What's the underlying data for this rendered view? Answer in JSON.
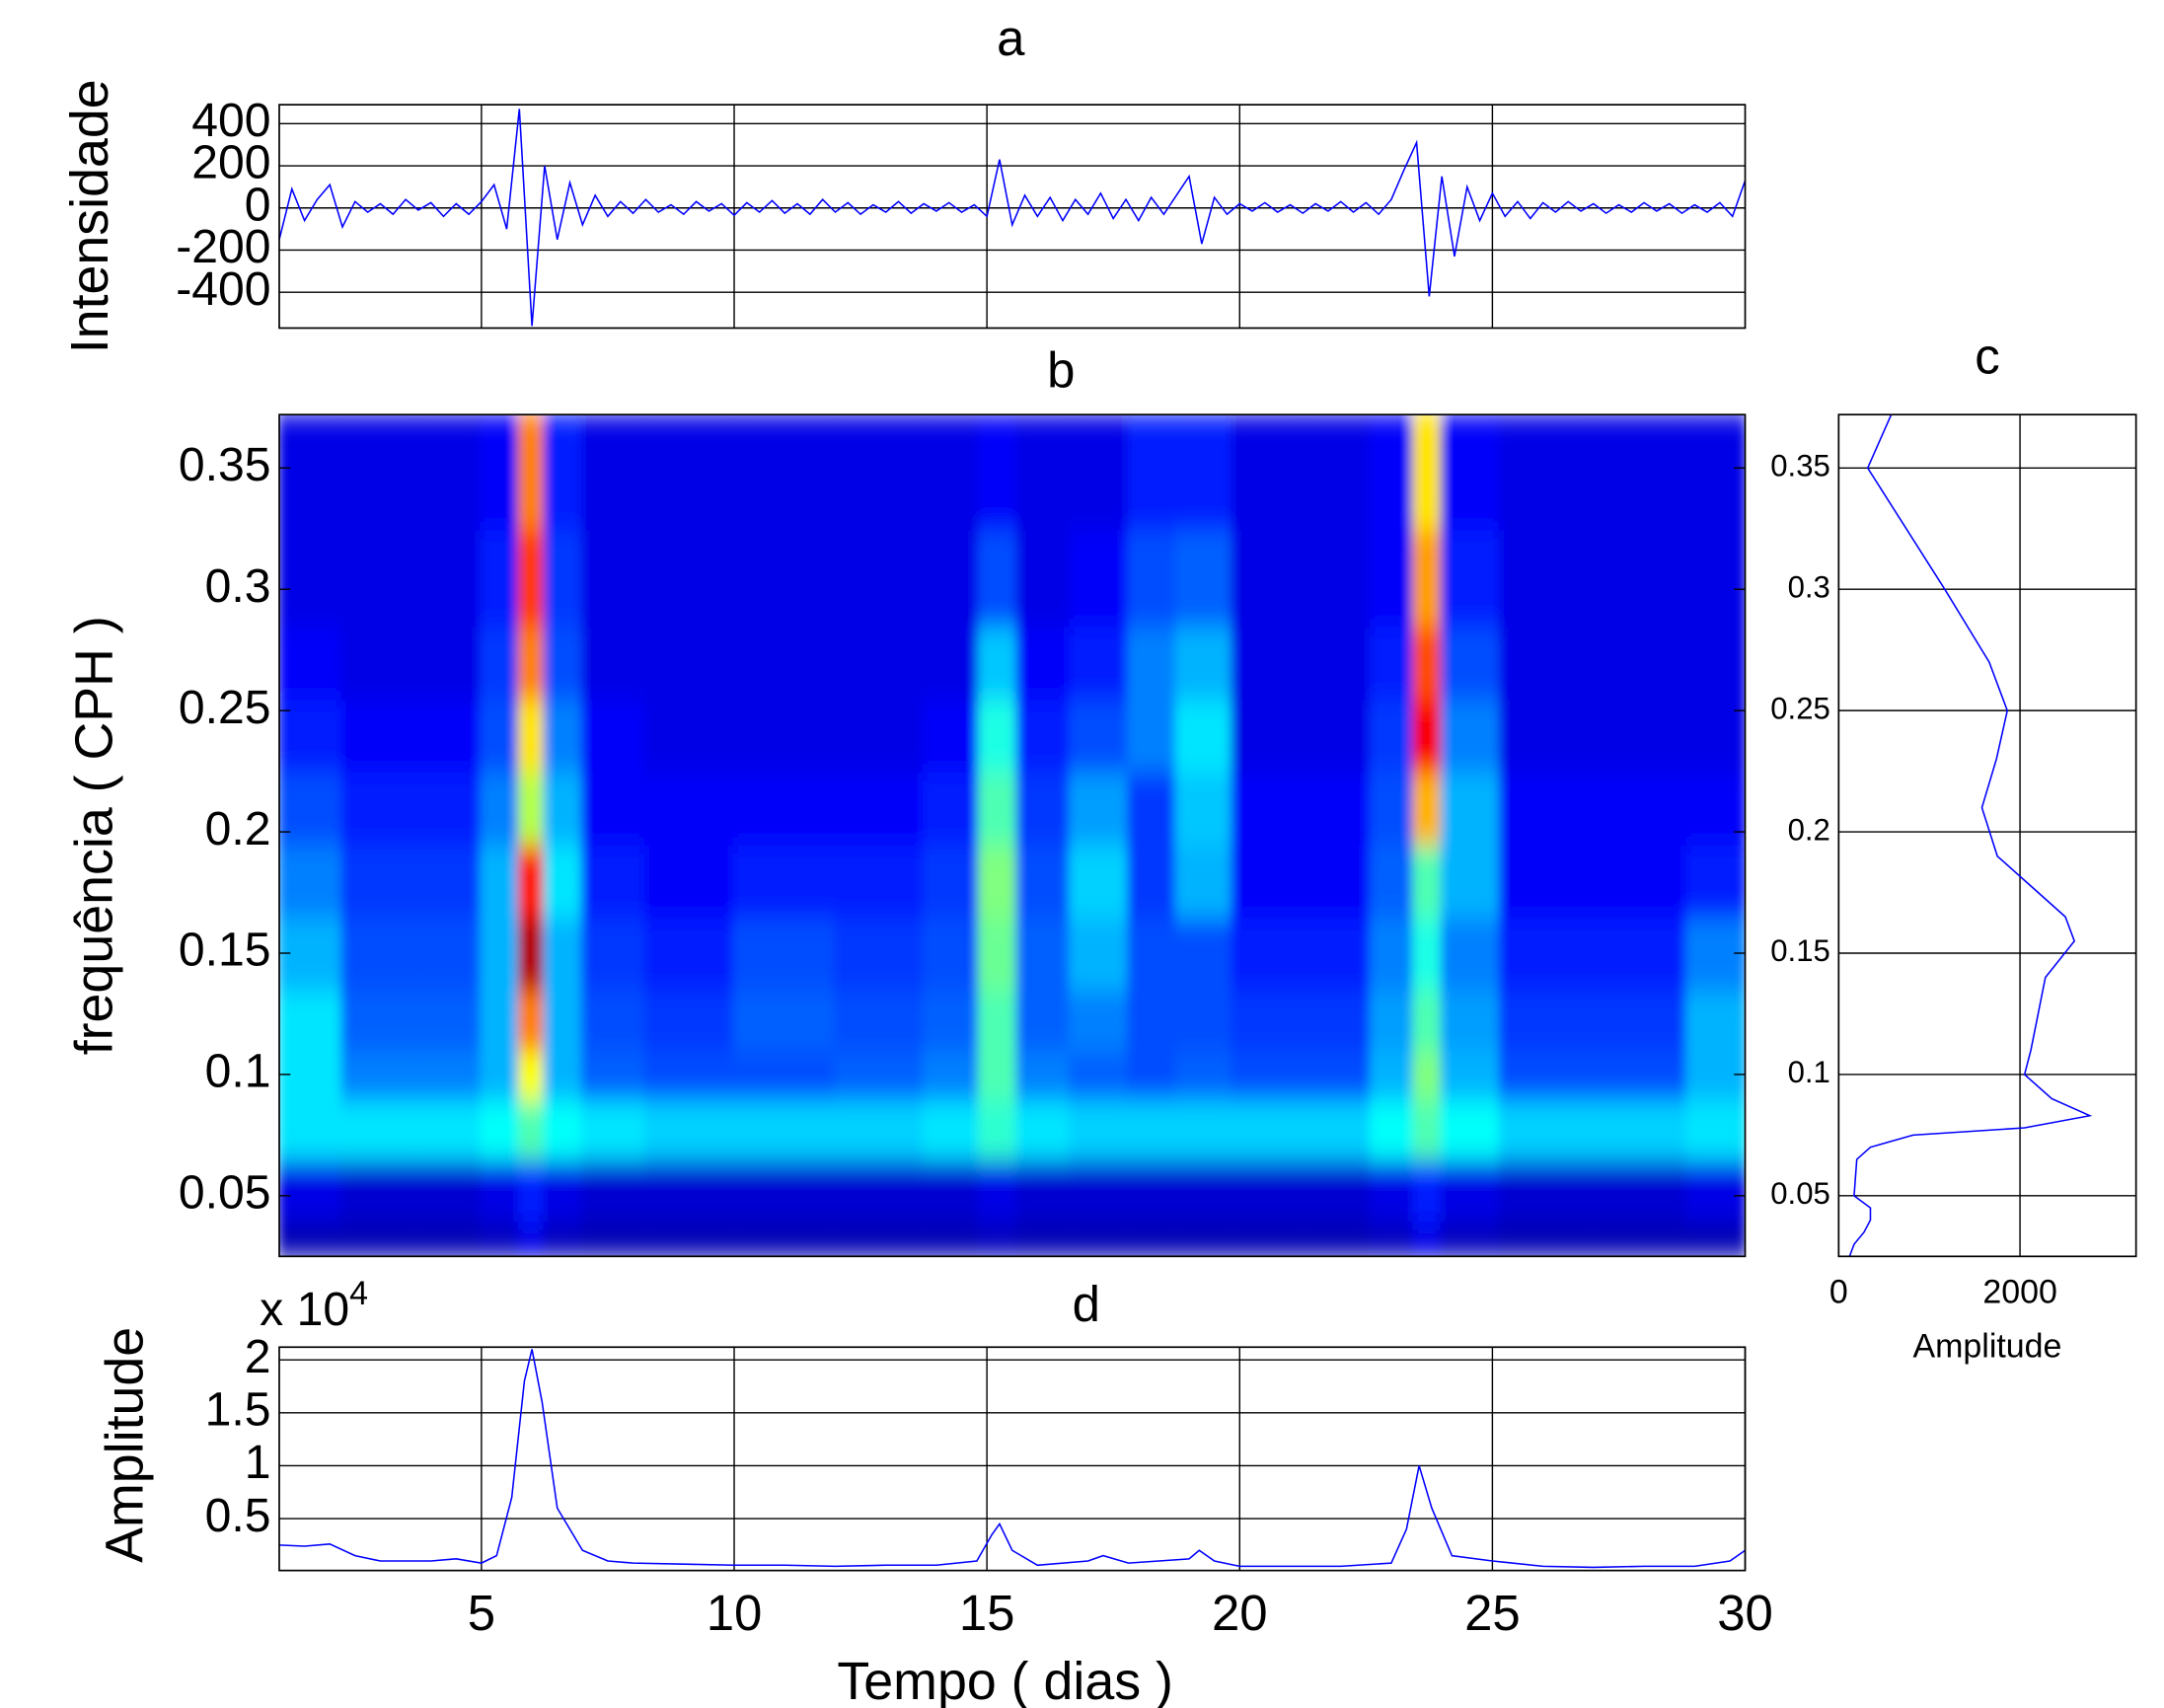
{
  "chart_data": [
    {
      "type": "line",
      "title": "a",
      "ylabel": "Intensidade",
      "xlim": [
        1,
        30
      ],
      "xticks": [
        5,
        10,
        15,
        20,
        25
      ],
      "xtick_labels": false,
      "ylim": [
        -570,
        490
      ],
      "yticks": [
        -400,
        -200,
        0,
        200,
        400
      ],
      "grid": true,
      "series": [
        {
          "color": "#0000ff",
          "x": [
            1,
            1.25,
            1.5,
            1.75,
            2,
            2.25,
            2.5,
            2.75,
            3,
            3.25,
            3.5,
            3.75,
            4,
            4.25,
            4.5,
            4.75,
            5,
            5.25,
            5.5,
            5.75,
            6,
            6.25,
            6.5,
            6.75,
            7,
            7.25,
            7.5,
            7.75,
            8,
            8.25,
            8.5,
            8.75,
            9,
            9.25,
            9.5,
            9.75,
            10,
            10.25,
            10.5,
            10.75,
            11,
            11.25,
            11.5,
            11.75,
            12,
            12.25,
            12.5,
            12.75,
            13,
            13.25,
            13.5,
            13.75,
            14,
            14.25,
            14.5,
            14.75,
            15,
            15.25,
            15.5,
            15.75,
            16,
            16.25,
            16.5,
            16.75,
            17,
            17.25,
            17.5,
            17.75,
            18,
            18.25,
            18.5,
            18.75,
            19,
            19.25,
            19.5,
            19.75,
            20,
            20.25,
            20.5,
            20.75,
            21,
            21.25,
            21.5,
            21.75,
            22,
            22.25,
            22.5,
            22.75,
            23,
            23.25,
            23.5,
            23.75,
            24,
            24.25,
            24.5,
            24.75,
            25,
            25.25,
            25.5,
            25.75,
            26,
            26.25,
            26.5,
            26.75,
            27,
            27.25,
            27.5,
            27.75,
            28,
            28.25,
            28.5,
            28.75,
            29,
            29.25,
            29.5,
            29.75,
            30
          ],
          "values": [
            -150,
            90,
            -60,
            40,
            110,
            -90,
            30,
            -20,
            20,
            -30,
            40,
            -10,
            25,
            -40,
            20,
            -30,
            30,
            110,
            -100,
            470,
            -560,
            200,
            -150,
            120,
            -80,
            60,
            -40,
            30,
            -25,
            40,
            -20,
            15,
            -30,
            30,
            -15,
            20,
            -35,
            25,
            -20,
            35,
            -25,
            20,
            -30,
            40,
            -20,
            25,
            -30,
            15,
            -20,
            30,
            -25,
            20,
            -15,
            25,
            -20,
            15,
            -40,
            230,
            -80,
            60,
            -40,
            50,
            -60,
            40,
            -30,
            70,
            -50,
            40,
            -60,
            50,
            -30,
            60,
            150,
            -170,
            50,
            -30,
            20,
            -15,
            25,
            -20,
            15,
            -25,
            20,
            -15,
            30,
            -20,
            25,
            -30,
            40,
            180,
            310,
            -420,
            150,
            -230,
            100,
            -60,
            70,
            -40,
            30,
            -50,
            25,
            -20,
            30,
            -15,
            20,
            -25,
            15,
            -20,
            25,
            -15,
            20,
            -25,
            15,
            -20,
            25,
            -40,
            130
          ]
        }
      ]
    },
    {
      "type": "heatmap",
      "title": "b",
      "ylabel": "frequência ( CPH )",
      "xlim": [
        1,
        30
      ],
      "ylim": [
        0.025,
        0.372
      ],
      "yticks": [
        0.05,
        0.1,
        0.15,
        0.2,
        0.25,
        0.3,
        0.35
      ],
      "grid": false,
      "x": [
        1.5,
        3,
        4.5,
        5.5,
        6,
        6.5,
        7.5,
        9,
        11,
        13,
        14.5,
        15.2,
        16,
        17.3,
        18.3,
        19.2,
        20.5,
        22,
        23.2,
        23.7,
        24.3,
        26,
        28,
        29.7
      ],
      "y": [
        0.03,
        0.05,
        0.08,
        0.1,
        0.12,
        0.15,
        0.18,
        0.21,
        0.24,
        0.27,
        0.3,
        0.35
      ],
      "z": [
        [
          0.05,
          0.05,
          0.05,
          0.06,
          0.1,
          0.06,
          0.05,
          0.05,
          0.05,
          0.05,
          0.05,
          0.06,
          0.05,
          0.05,
          0.05,
          0.05,
          0.05,
          0.05,
          0.06,
          0.1,
          0.06,
          0.05,
          0.05,
          0.05
        ],
        [
          0.1,
          0.08,
          0.08,
          0.1,
          0.15,
          0.1,
          0.08,
          0.08,
          0.08,
          0.08,
          0.08,
          0.1,
          0.08,
          0.08,
          0.08,
          0.08,
          0.08,
          0.08,
          0.1,
          0.15,
          0.1,
          0.08,
          0.08,
          0.1
        ],
        [
          0.35,
          0.35,
          0.35,
          0.38,
          0.45,
          0.38,
          0.35,
          0.33,
          0.33,
          0.33,
          0.35,
          0.42,
          0.35,
          0.33,
          0.33,
          0.33,
          0.33,
          0.33,
          0.38,
          0.45,
          0.38,
          0.33,
          0.33,
          0.35
        ],
        [
          0.35,
          0.25,
          0.25,
          0.3,
          0.62,
          0.3,
          0.22,
          0.2,
          0.2,
          0.22,
          0.25,
          0.45,
          0.25,
          0.22,
          0.2,
          0.22,
          0.2,
          0.2,
          0.3,
          0.5,
          0.3,
          0.2,
          0.2,
          0.3
        ],
        [
          0.35,
          0.22,
          0.22,
          0.3,
          0.75,
          0.3,
          0.2,
          0.18,
          0.22,
          0.2,
          0.22,
          0.45,
          0.22,
          0.25,
          0.2,
          0.2,
          0.18,
          0.18,
          0.28,
          0.45,
          0.28,
          0.18,
          0.18,
          0.3
        ],
        [
          0.3,
          0.2,
          0.2,
          0.3,
          0.95,
          0.3,
          0.18,
          0.15,
          0.2,
          0.18,
          0.2,
          0.48,
          0.22,
          0.3,
          0.2,
          0.2,
          0.15,
          0.15,
          0.25,
          0.4,
          0.25,
          0.15,
          0.15,
          0.25
        ],
        [
          0.25,
          0.18,
          0.18,
          0.3,
          0.85,
          0.35,
          0.15,
          0.12,
          0.15,
          0.15,
          0.18,
          0.5,
          0.2,
          0.33,
          0.18,
          0.3,
          0.12,
          0.12,
          0.22,
          0.45,
          0.3,
          0.12,
          0.12,
          0.15
        ],
        [
          0.2,
          0.15,
          0.15,
          0.25,
          0.55,
          0.3,
          0.12,
          0.12,
          0.12,
          0.12,
          0.15,
          0.45,
          0.18,
          0.28,
          0.18,
          0.32,
          0.12,
          0.12,
          0.2,
          0.7,
          0.3,
          0.12,
          0.12,
          0.12
        ],
        [
          0.15,
          0.12,
          0.12,
          0.2,
          0.65,
          0.25,
          0.12,
          0.1,
          0.1,
          0.1,
          0.12,
          0.4,
          0.15,
          0.2,
          0.25,
          0.35,
          0.1,
          0.1,
          0.18,
          0.88,
          0.25,
          0.1,
          0.1,
          0.1
        ],
        [
          0.12,
          0.1,
          0.1,
          0.18,
          0.75,
          0.2,
          0.1,
          0.1,
          0.1,
          0.1,
          0.1,
          0.32,
          0.12,
          0.15,
          0.25,
          0.3,
          0.1,
          0.1,
          0.15,
          0.8,
          0.2,
          0.1,
          0.1,
          0.1
        ],
        [
          0.1,
          0.1,
          0.1,
          0.15,
          0.82,
          0.18,
          0.1,
          0.1,
          0.1,
          0.1,
          0.1,
          0.2,
          0.1,
          0.12,
          0.2,
          0.22,
          0.1,
          0.1,
          0.12,
          0.72,
          0.15,
          0.1,
          0.1,
          0.1
        ],
        [
          0.1,
          0.1,
          0.1,
          0.12,
          0.75,
          0.15,
          0.1,
          0.1,
          0.1,
          0.1,
          0.1,
          0.12,
          0.1,
          0.1,
          0.15,
          0.15,
          0.1,
          0.1,
          0.12,
          0.65,
          0.12,
          0.1,
          0.1,
          0.1
        ]
      ]
    },
    {
      "type": "line",
      "title": "c",
      "xlabel": "Amplitude",
      "orientation": "horizontal",
      "xlim": [
        0,
        3280
      ],
      "xticks": [
        0,
        2000
      ],
      "ylim": [
        0.025,
        0.372
      ],
      "yticks": [
        0.05,
        0.1,
        0.15,
        0.2,
        0.25,
        0.3,
        0.35
      ],
      "grid": true,
      "series": [
        {
          "color": "#0000ff",
          "y": [
            0.025,
            0.03,
            0.035,
            0.04,
            0.045,
            0.05,
            0.065,
            0.07,
            0.075,
            0.078,
            0.083,
            0.09,
            0.1,
            0.11,
            0.125,
            0.14,
            0.155,
            0.165,
            0.18,
            0.19,
            0.21,
            0.23,
            0.25,
            0.27,
            0.3,
            0.35,
            0.372
          ],
          "values": [
            120,
            170,
            280,
            350,
            350,
            170,
            200,
            350,
            820,
            2050,
            2770,
            2350,
            2050,
            2120,
            2200,
            2280,
            2600,
            2500,
            2050,
            1750,
            1580,
            1740,
            1860,
            1660,
            1170,
            320,
            580
          ]
        }
      ]
    },
    {
      "type": "line",
      "title": "d",
      "ylabel": "Amplitude",
      "xlabel": "Tempo ( dias )",
      "y_multiplier": "x 10",
      "y_exponent": "4",
      "xlim": [
        1,
        30
      ],
      "xticks": [
        5,
        10,
        15,
        20,
        25,
        30
      ],
      "ylim": [
        0.01,
        2.12
      ],
      "yticks": [
        0.5,
        1,
        1.5,
        2
      ],
      "grid": true,
      "series": [
        {
          "color": "#0000ff",
          "x": [
            1,
            1.5,
            2,
            2.5,
            3,
            4,
            4.5,
            5,
            5.3,
            5.6,
            5.85,
            6,
            6.2,
            6.5,
            7,
            7.5,
            8,
            9,
            10,
            11,
            12,
            13,
            14,
            14.8,
            15.1,
            15.25,
            15.5,
            16,
            17,
            17.3,
            17.8,
            19,
            19.2,
            19.5,
            20,
            21,
            22,
            23,
            23.3,
            23.55,
            23.8,
            24.2,
            25,
            26,
            27,
            28,
            29,
            29.7,
            30
          ],
          "values": [
            0.25,
            0.24,
            0.26,
            0.15,
            0.1,
            0.1,
            0.12,
            0.08,
            0.15,
            0.7,
            1.8,
            2.1,
            1.6,
            0.6,
            0.2,
            0.1,
            0.08,
            0.07,
            0.06,
            0.06,
            0.05,
            0.06,
            0.06,
            0.1,
            0.35,
            0.45,
            0.2,
            0.06,
            0.1,
            0.15,
            0.08,
            0.12,
            0.2,
            0.1,
            0.05,
            0.05,
            0.05,
            0.08,
            0.4,
            1.0,
            0.6,
            0.15,
            0.1,
            0.05,
            0.04,
            0.05,
            0.05,
            0.1,
            0.2
          ]
        }
      ]
    }
  ]
}
